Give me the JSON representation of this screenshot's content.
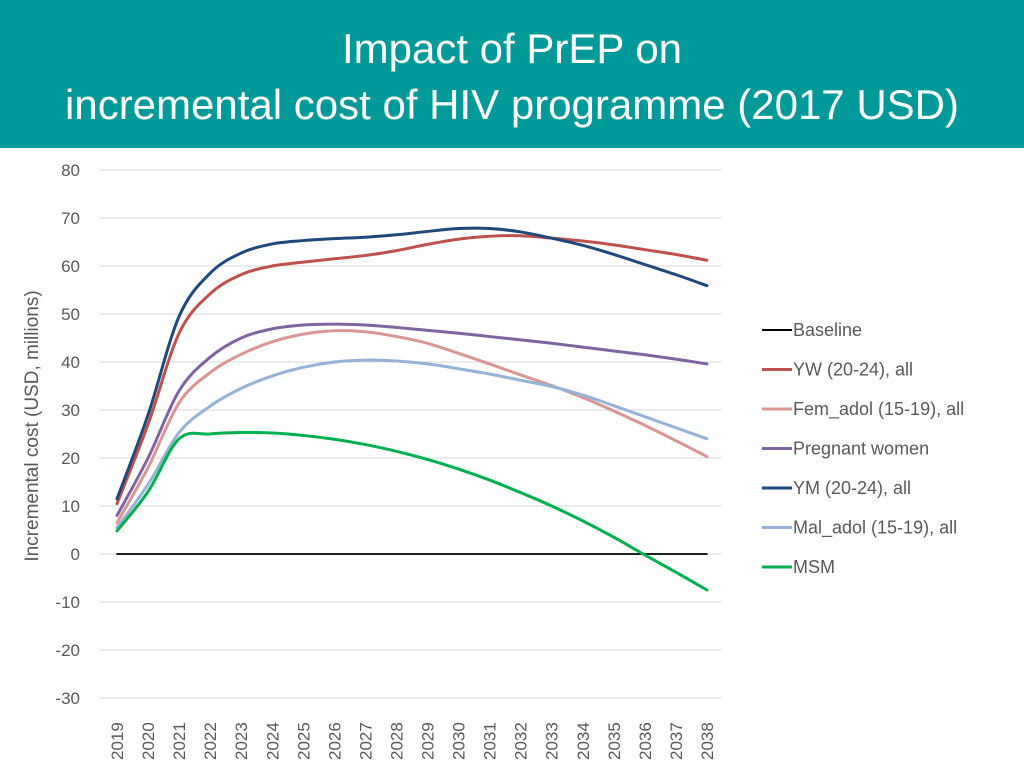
{
  "slide": {
    "title_line1": "Impact of PrEP on",
    "title_line2": "incremental cost of HIV programme (2017 USD)",
    "banner_color": "#009999"
  },
  "chart_data": {
    "type": "line",
    "title": "Impact of PrEP on incremental cost of HIV programme (2017 USD)",
    "xlabel": "",
    "ylabel": "Incremental cost (USD, millions)",
    "ylim": [
      -30,
      80
    ],
    "yticks": [
      -30,
      -20,
      -10,
      0,
      10,
      20,
      30,
      40,
      50,
      60,
      70,
      80
    ],
    "grid": true,
    "legend_position": "right",
    "categories": [
      "2019",
      "2020",
      "2021",
      "2022",
      "2023",
      "2024",
      "2025",
      "2026",
      "2027",
      "2028",
      "2029",
      "2030",
      "2031",
      "2032",
      "2033",
      "2034",
      "2035",
      "2036",
      "2037",
      "2038"
    ],
    "series": [
      {
        "name": "Baseline",
        "color": "#000000",
        "values": [
          0,
          0,
          0,
          0,
          0,
          0,
          0,
          0,
          0,
          0,
          0,
          0,
          0,
          0,
          0,
          0,
          0,
          0,
          0,
          0
        ]
      },
      {
        "name": "YW (20-24), all",
        "color": "#C0504D",
        "values": [
          10.5,
          27,
          46,
          54.2,
          58.2,
          60,
          60.8,
          61.5,
          62.2,
          63.2,
          64.5,
          65.6,
          66.2,
          66.3,
          65.8,
          65.2,
          64.4,
          63.4,
          62.4,
          61.2
        ]
      },
      {
        "name": "Fem_adol (15-19), all",
        "color": "#D99694",
        "values": [
          6.5,
          18,
          31.5,
          37.8,
          41.6,
          44.2,
          45.8,
          46.5,
          46.3,
          45.3,
          43.9,
          41.8,
          39.6,
          37.3,
          35.1,
          32.6,
          29.8,
          26.8,
          23.6,
          20.3
        ]
      },
      {
        "name": "Pregnant women",
        "color": "#8064A2",
        "values": [
          8,
          20,
          34,
          41,
          45,
          46.9,
          47.7,
          47.9,
          47.7,
          47.2,
          46.6,
          46,
          45.3,
          44.6,
          43.9,
          43.1,
          42.3,
          41.5,
          40.6,
          39.6
        ]
      },
      {
        "name": "YM (20-24), all",
        "color": "#1F497D",
        "values": [
          11.5,
          29,
          49.5,
          58.5,
          62.7,
          64.6,
          65.3,
          65.7,
          66,
          66.5,
          67.2,
          67.8,
          67.8,
          67.1,
          65.8,
          64.3,
          62.4,
          60.3,
          58.2,
          55.9
        ]
      },
      {
        "name": "Mal_adol (15-19), all",
        "color": "#95B3D7",
        "values": [
          5.5,
          14.5,
          25.3,
          30.8,
          34.5,
          37.1,
          38.9,
          40,
          40.4,
          40.2,
          39.6,
          38.6,
          37.5,
          36.2,
          34.9,
          33.1,
          30.9,
          28.6,
          26.3,
          24
        ]
      },
      {
        "name": "MSM",
        "color": "#00B050",
        "values": [
          4.8,
          13,
          24,
          25,
          25.3,
          25.2,
          24.7,
          23.9,
          22.8,
          21.4,
          19.7,
          17.7,
          15.4,
          12.8,
          10,
          6.9,
          3.5,
          -0.2,
          -3.8,
          -7.5
        ]
      }
    ]
  }
}
